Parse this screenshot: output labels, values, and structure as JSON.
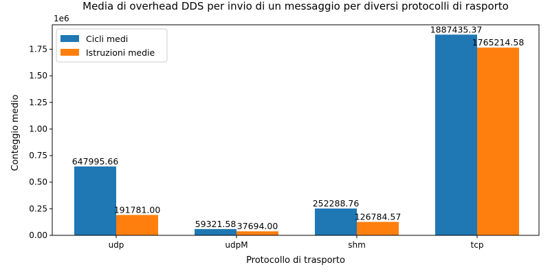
{
  "chart_data": {
    "type": "bar",
    "title": "Media di overhead DDS per invio di un messaggio per diversi protocolli di rasporto",
    "xlabel": "Protocollo di trasporto",
    "ylabel": "Conteggio medio",
    "y_scale_label": "1e6",
    "ylim": [
      0,
      1.98
    ],
    "y_ticks": [
      0.0,
      0.25,
      0.5,
      0.75,
      1.0,
      1.25,
      1.5,
      1.75
    ],
    "y_tick_labels": [
      "0.00",
      "0.25",
      "0.50",
      "0.75",
      "1.00",
      "1.25",
      "1.50",
      "1.75"
    ],
    "categories": [
      "udp",
      "udpM",
      "shm",
      "tcp"
    ],
    "series": [
      {
        "name": "Cicli medi",
        "color": "#1f77b4",
        "values": [
          647995.66,
          59321.58,
          252288.76,
          1887435.37
        ],
        "labels": [
          "647995.66",
          "59321.58",
          "252288.76",
          "1887435.37"
        ]
      },
      {
        "name": "Istruzioni medie",
        "color": "#ff7f0e",
        "values": [
          191781.0,
          37694.0,
          126784.57,
          1765214.58
        ],
        "labels": [
          "191781.00",
          "37694.00",
          "126784.57",
          "1765214.58"
        ]
      }
    ],
    "legend_position": "top-left",
    "grid": false
  }
}
